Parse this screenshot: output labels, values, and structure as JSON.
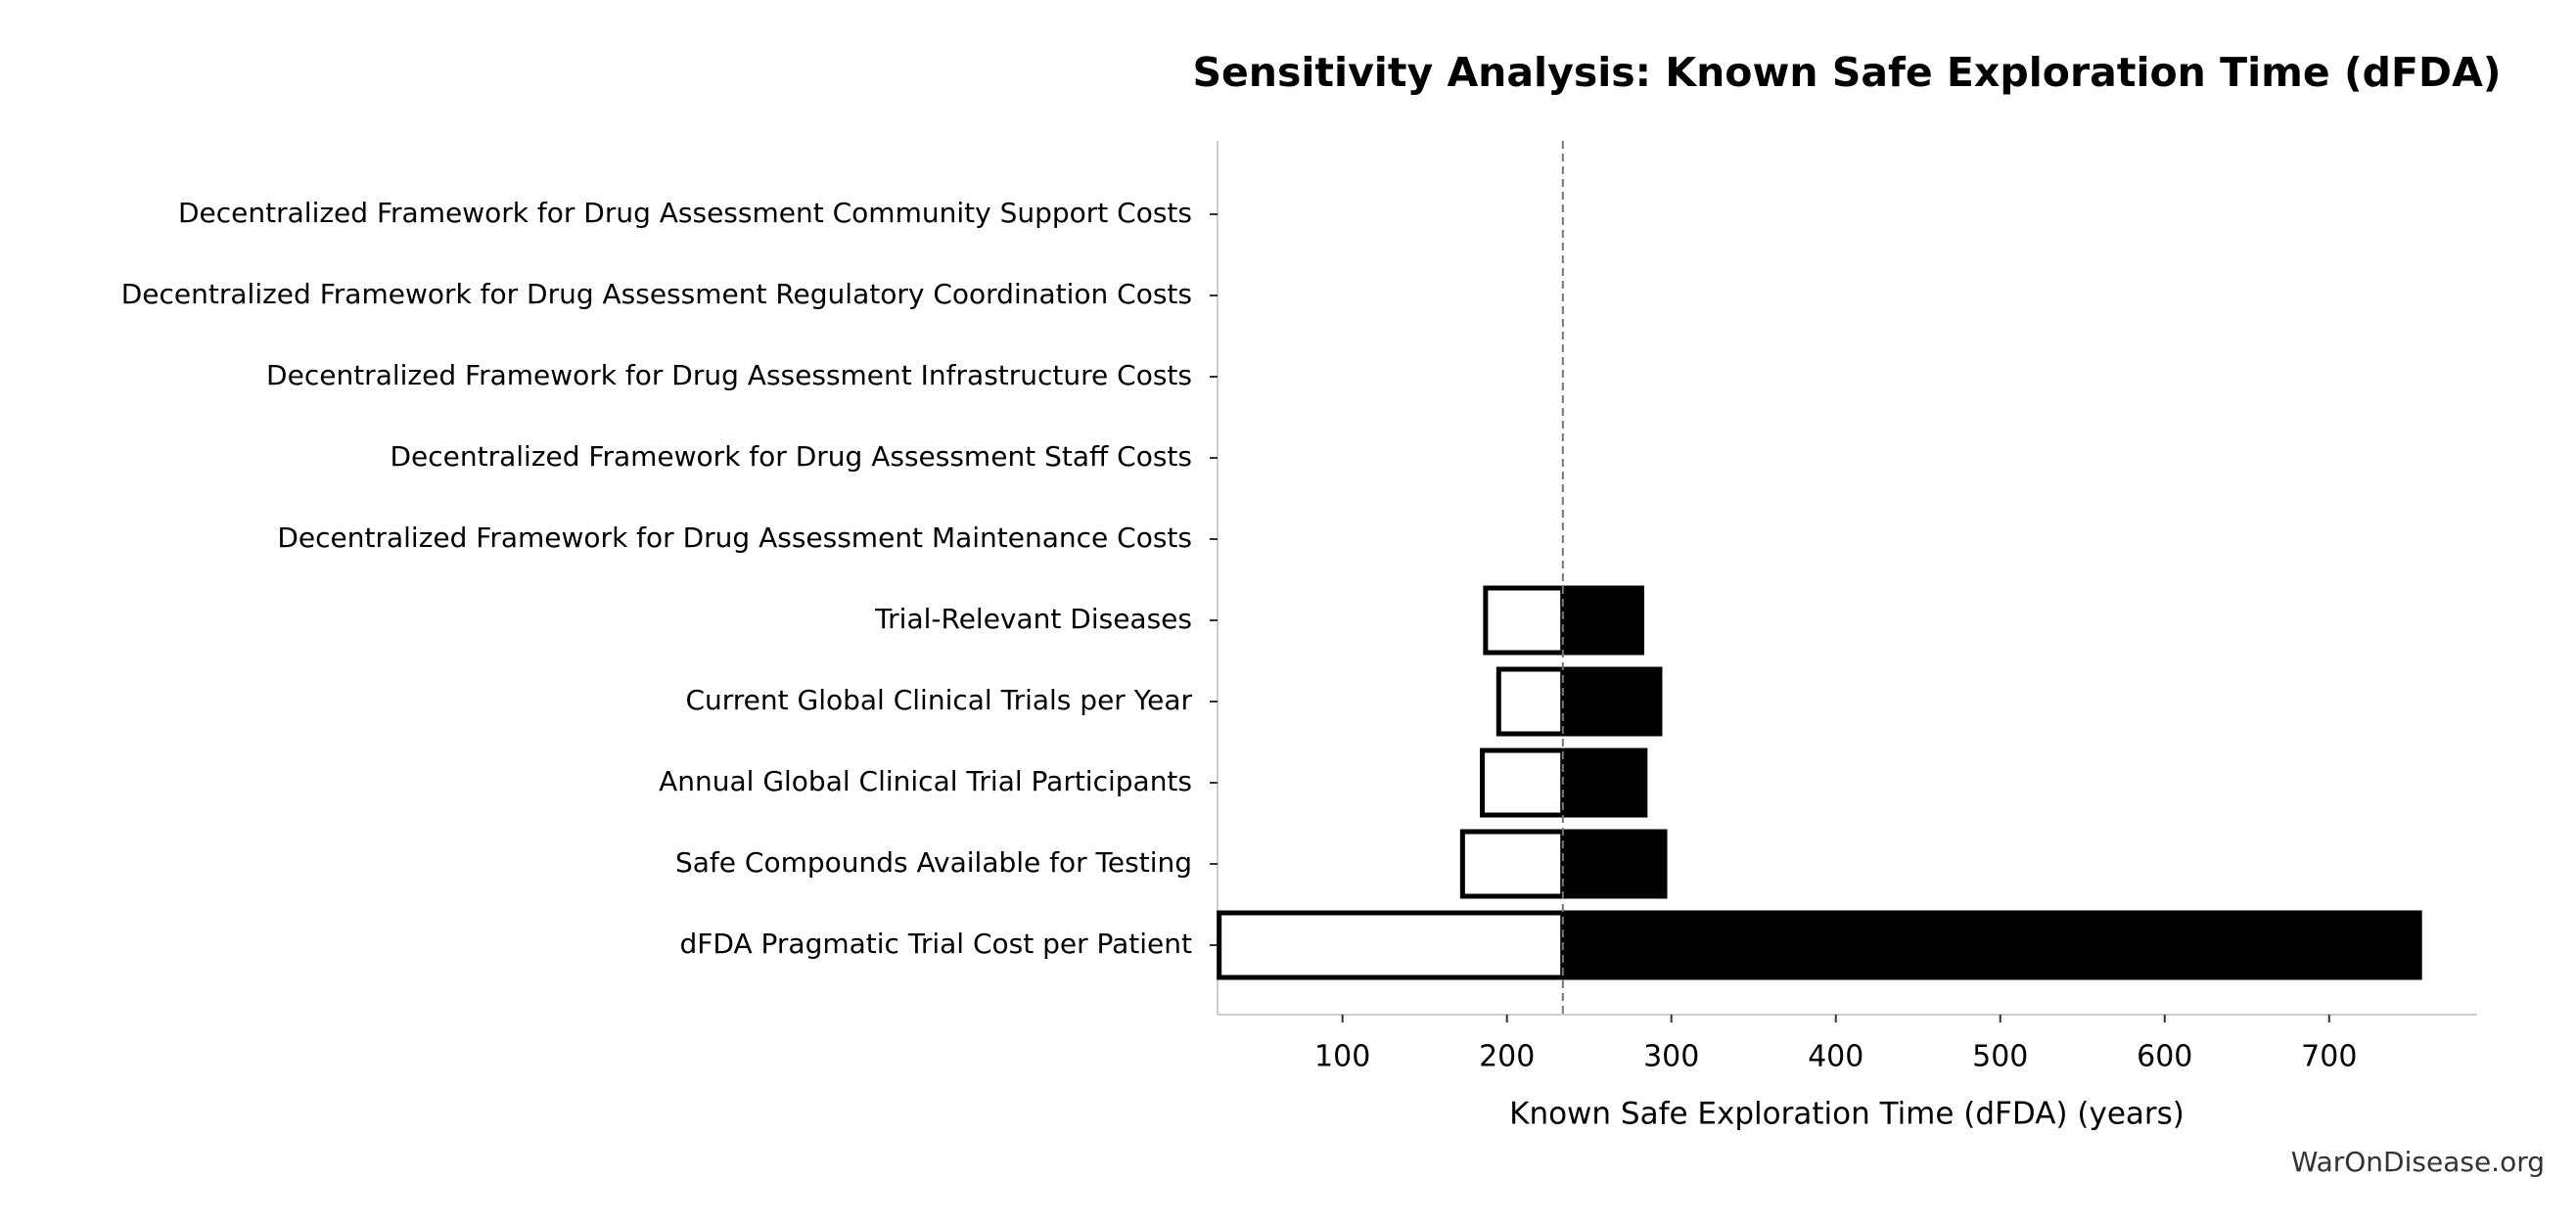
{
  "chart_data": {
    "type": "tornado",
    "title": "Sensitivity Analysis: Known Safe Exploration Time (dFDA)",
    "x_label": "Known Safe Exploration Time (dFDA) (years)",
    "watermark": "WarOnDisease.org",
    "categories": [
      "Decentralized Framework for Drug Assessment Community Support Costs",
      "Decentralized Framework for Drug Assessment Regulatory Coordination Costs",
      "Decentralized Framework for Drug Assessment Infrastructure Costs",
      "Decentralized Framework for Drug Assessment Staff Costs",
      "Decentralized Framework for Drug Assessment Maintenance Costs",
      "Trial-Relevant Diseases",
      "Current Global Clinical Trials per Year",
      "Annual Global Clinical Trial Participants",
      "Safe Compounds Available for Testing",
      "dFDA Pragmatic Trial Cost per Patient"
    ],
    "baseline": 234,
    "low_values": [
      234,
      234,
      234,
      234,
      234,
      187,
      195,
      185,
      173,
      25
    ],
    "high_values": [
      234,
      234,
      234,
      234,
      234,
      282,
      293,
      284,
      296,
      755
    ],
    "low_color": "#ffffff",
    "high_color": "#000000",
    "xlim": [
      24,
      790
    ],
    "xticks": [
      100,
      200,
      300,
      400,
      500,
      600,
      700
    ]
  }
}
